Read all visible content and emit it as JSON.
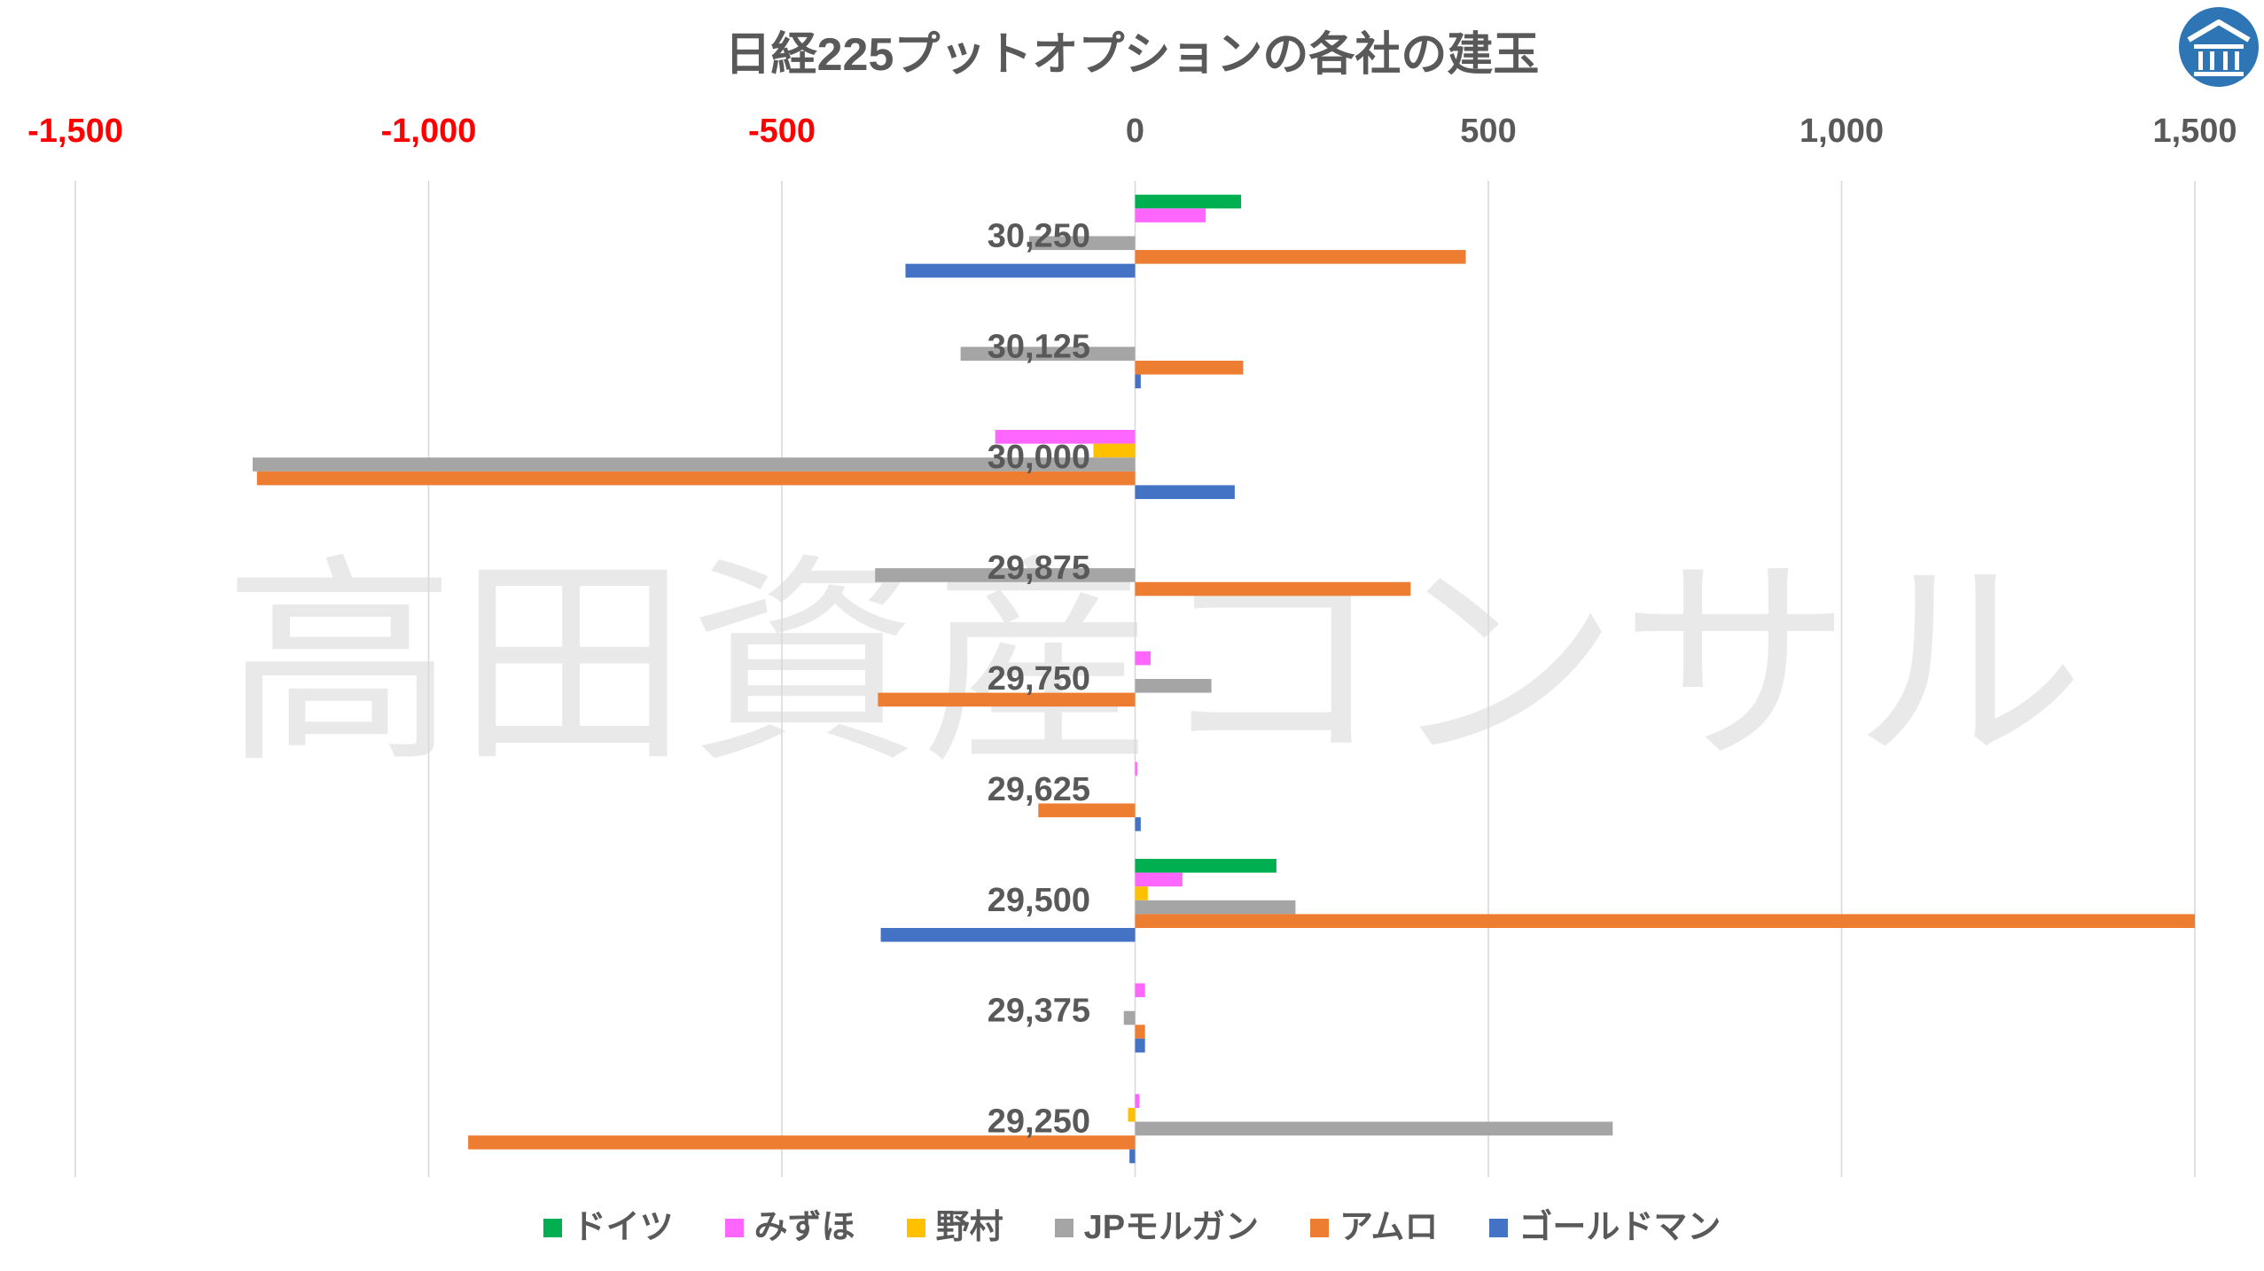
{
  "watermark": "高田資産コンサル",
  "logo": {
    "icon": "bank-building-icon",
    "color": "#2E75B6"
  },
  "chart_data": {
    "type": "bar",
    "orientation": "horizontal",
    "title": "日経225プットオプションの各社の建玉",
    "categories": [
      "30,250",
      "30,125",
      "30,000",
      "29,875",
      "29,750",
      "29,625",
      "29,500",
      "29,375",
      "29,250"
    ],
    "x_axis": {
      "position": "top",
      "range": [
        -1500,
        1500
      ],
      "ticks": [
        -1500,
        -1000,
        -500,
        0,
        500,
        1000,
        1500
      ],
      "tick_labels": [
        "-1,500",
        "-1,000",
        "-500",
        "0",
        "500",
        "1,000",
        "1,500"
      ],
      "label_color": "#595959",
      "negative_label_color": "#FF0000",
      "grid": true
    },
    "legend": {
      "position": "bottom"
    },
    "series": [
      {
        "name": "ドイツ",
        "color": "#00B050",
        "values": [
          150,
          0,
          0,
          0,
          0,
          0,
          200,
          0,
          0
        ]
      },
      {
        "name": "みずほ",
        "color": "#FF66FF",
        "values": [
          100,
          0,
          -198,
          0,
          22,
          3,
          67,
          14,
          6
        ]
      },
      {
        "name": "野村",
        "color": "#FFC000",
        "values": [
          0,
          0,
          -59,
          0,
          0,
          0,
          18,
          0,
          -10
        ]
      },
      {
        "name": "JPモルガン",
        "color": "#A5A5A5",
        "values": [
          -150,
          -247,
          -1249,
          -368,
          108,
          0,
          227,
          -16,
          676
        ]
      },
      {
        "name": "アムロ",
        "color": "#ED7D31",
        "values": [
          468,
          153,
          -1243,
          390,
          -364,
          -137,
          1500,
          14,
          -944
        ]
      },
      {
        "name": "ゴールドマン",
        "color": "#4472C4",
        "values": [
          -325,
          8,
          141,
          0,
          0,
          8,
          -360,
          14,
          -8
        ]
      }
    ]
  }
}
